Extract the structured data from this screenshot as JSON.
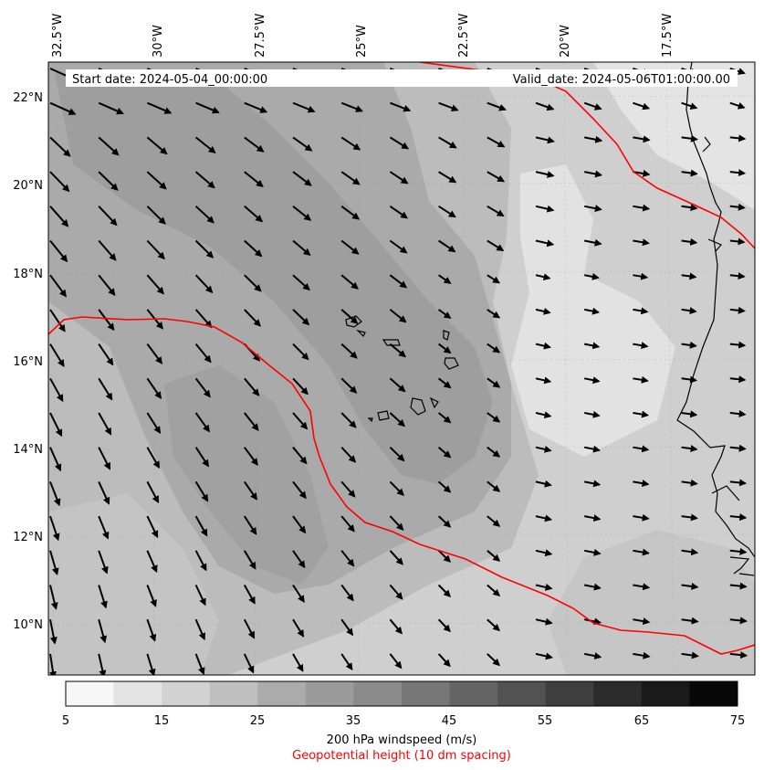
{
  "header": {
    "start_date": "Start date: 2024-05-04_00:00:00",
    "valid_date": "Valid_date: 2024-05-06T01:00:00.00"
  },
  "axes": {
    "lon_labels": [
      "32.5°W",
      "30°W",
      "27.5°W",
      "25°W",
      "22.5°W",
      "20°W",
      "17.5°W"
    ],
    "lat_labels": [
      "22°N",
      "20°N",
      "18°N",
      "16°N",
      "14°N",
      "12°N",
      "10°N"
    ]
  },
  "colorbar": {
    "ticks": [
      "5",
      "15",
      "25",
      "35",
      "45",
      "55",
      "65",
      "75"
    ],
    "colors": [
      "#f7f7f7",
      "#e3e3e3",
      "#d2d2d2",
      "#bfbfbf",
      "#ababab",
      "#9b9b9b",
      "#8a8a8a",
      "#777777",
      "#646464",
      "#525252",
      "#3f3f3f",
      "#2c2c2c",
      "#1a1a1a",
      "#080808"
    ],
    "label": "200 hPa windspeed (m/s)",
    "sublabel": "Geopotential height (10 dm spacing)",
    "sublabel_color": "#ff0000"
  },
  "contour_color": "#ff0000"
}
